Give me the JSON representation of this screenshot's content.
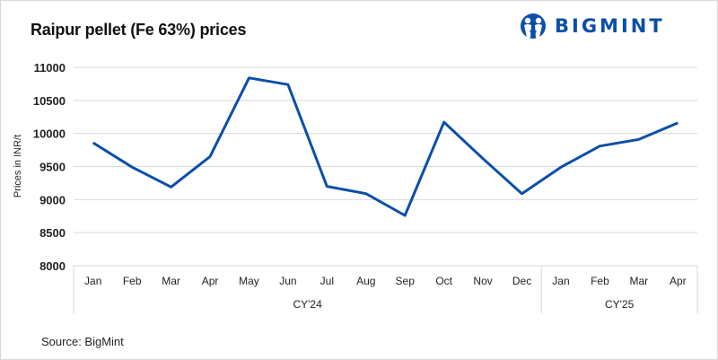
{
  "header": {
    "title": "Raipur pellet (Fe 63%) prices",
    "logo_text": "BIGMINT",
    "brand_color": "#0b4fa8"
  },
  "footer": {
    "source": "Source: BigMint"
  },
  "chart_data": {
    "type": "line",
    "title": "Raipur pellet (Fe 63%) prices",
    "xlabel": "",
    "ylabel": "Prices in INR/t",
    "ylim": [
      8000,
      11000
    ],
    "yticks": [
      8000,
      8500,
      9000,
      9500,
      10000,
      10500,
      11000
    ],
    "grid": true,
    "legend": null,
    "categories": [
      "Jan",
      "Feb",
      "Mar",
      "Apr",
      "May",
      "Jun",
      "Jul",
      "Aug",
      "Sep",
      "Oct",
      "Nov",
      "Dec",
      "Jan",
      "Feb",
      "Mar",
      "Apr"
    ],
    "groups": [
      {
        "label": "CY'24",
        "start": 0,
        "end": 11
      },
      {
        "label": "CY'25",
        "start": 12,
        "end": 15
      }
    ],
    "series": [
      {
        "name": "Raipur pellet (Fe 63%)",
        "color": "#0b4fa8",
        "values": [
          9860,
          9490,
          9190,
          9650,
          10840,
          10740,
          9200,
          9090,
          8760,
          10170,
          9620,
          9090,
          9490,
          9810,
          9910,
          10160
        ]
      }
    ]
  }
}
